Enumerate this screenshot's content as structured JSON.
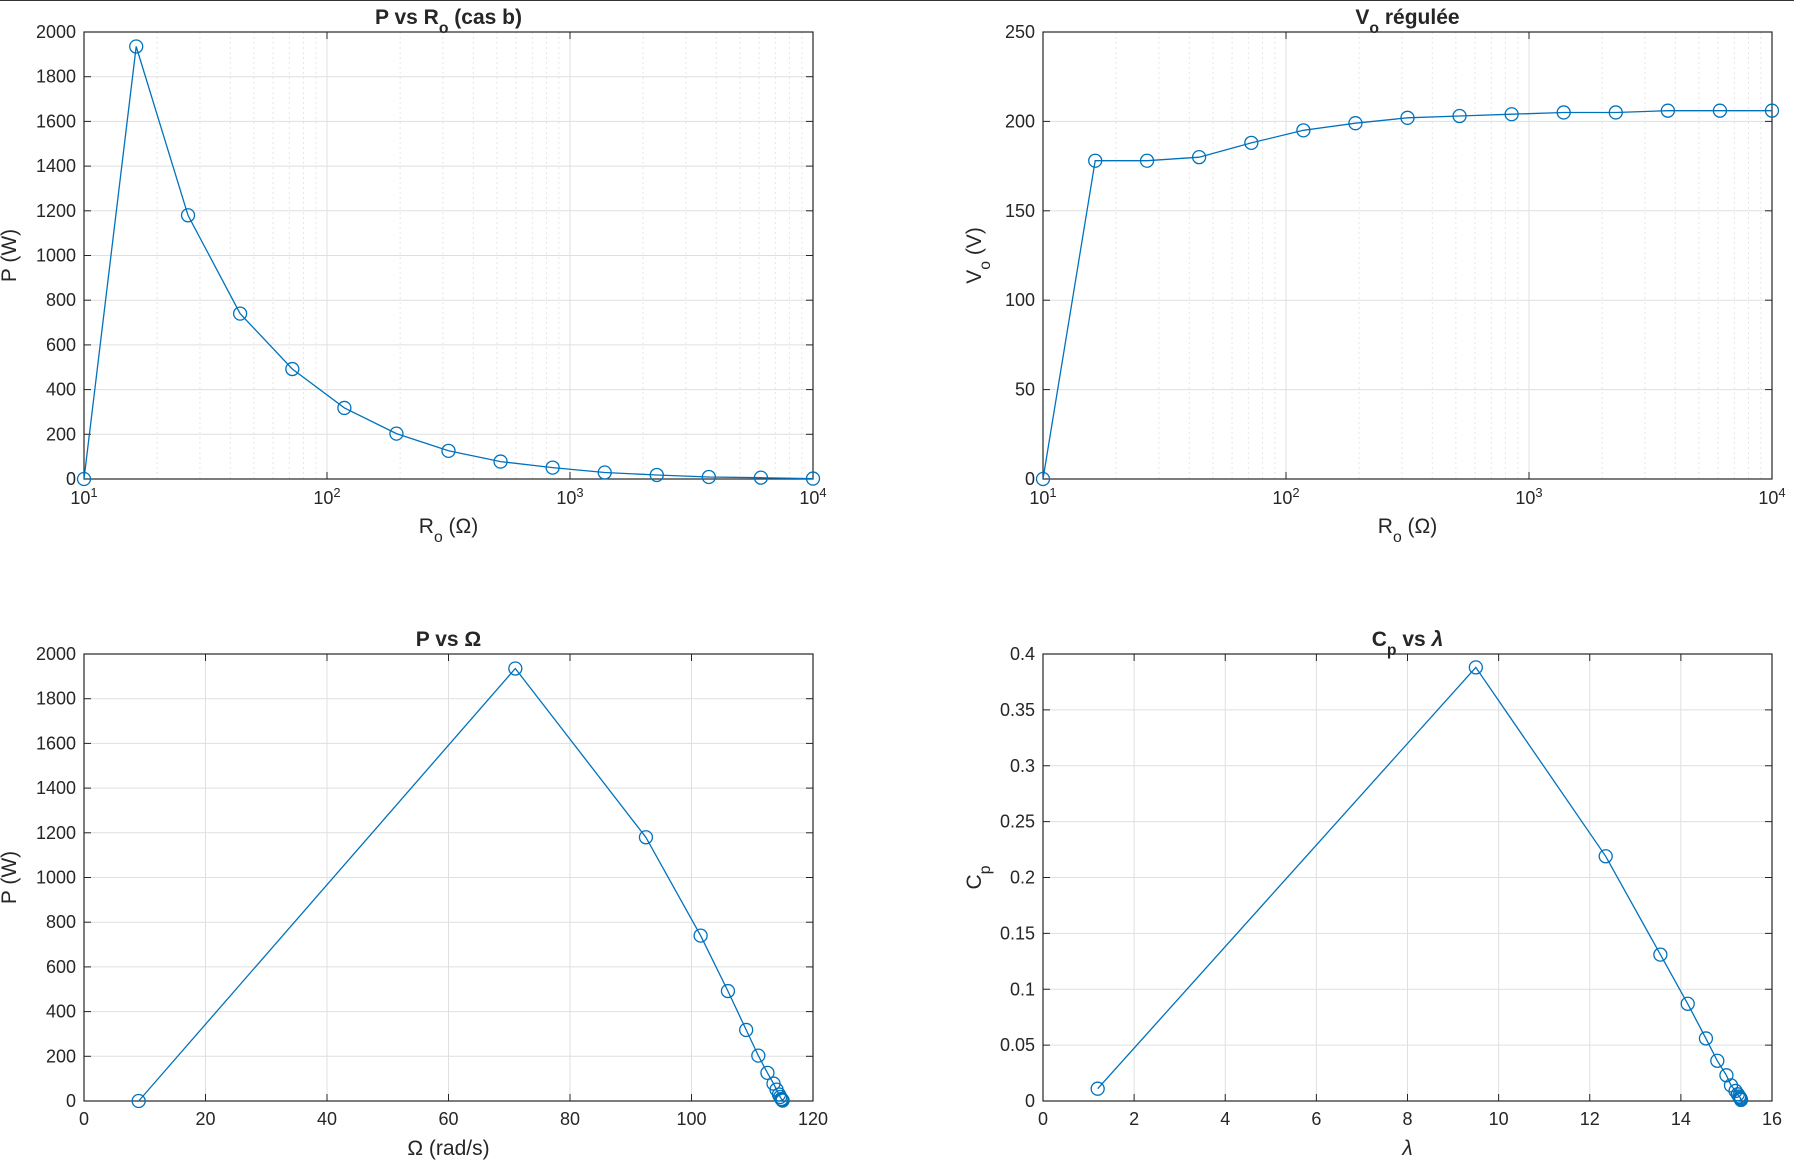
{
  "figure": {
    "colors": {
      "series": "#0072bd",
      "grid": "#dfdfdf",
      "axis": "#262626",
      "background": "#ffffff"
    }
  },
  "chart_data": [
    {
      "type": "line",
      "title_parts": [
        "P vs R",
        "o",
        " (cas b)"
      ],
      "xlabel_parts": [
        "R",
        "o",
        " (Ω)"
      ],
      "ylabel": "P (W)",
      "xscale": "log",
      "xlim": [
        10,
        10000
      ],
      "ylim": [
        0,
        2000
      ],
      "xticks": [
        10,
        100,
        1000,
        10000
      ],
      "xtick_labels": [
        [
          "10",
          "1"
        ],
        [
          "10",
          "2"
        ],
        [
          "10",
          "3"
        ],
        [
          "10",
          "4"
        ]
      ],
      "yticks": [
        0,
        200,
        400,
        600,
        800,
        1000,
        1200,
        1400,
        1600,
        1800,
        2000
      ],
      "ytick_labels": [
        "0",
        "200",
        "400",
        "600",
        "800",
        "1000",
        "1200",
        "1400",
        "1600",
        "1800",
        "2000"
      ],
      "grid": true,
      "minor_grid": true,
      "marker": "circle",
      "x": [
        10,
        16.4,
        26.8,
        43.9,
        72.0,
        117.9,
        193.1,
        316.2,
        517.9,
        848.3,
        1389.5,
        2275.8,
        3727.6,
        6105.4,
        10000
      ],
      "y": [
        0,
        1935,
        1180,
        740,
        492,
        318,
        203,
        126,
        78,
        51,
        29,
        18,
        9,
        6,
        2
      ]
    },
    {
      "type": "line",
      "title_parts": [
        "V",
        "o",
        " régulée"
      ],
      "xlabel_parts": [
        "R",
        "o",
        " (Ω)"
      ],
      "ylabel_parts": [
        "V",
        "o",
        " (V)"
      ],
      "xscale": "log",
      "xlim": [
        10,
        10000
      ],
      "ylim": [
        0,
        250
      ],
      "xticks": [
        10,
        100,
        1000,
        10000
      ],
      "xtick_labels": [
        [
          "10",
          "1"
        ],
        [
          "10",
          "2"
        ],
        [
          "10",
          "3"
        ],
        [
          "10",
          "4"
        ]
      ],
      "yticks": [
        0,
        50,
        100,
        150,
        200,
        250
      ],
      "ytick_labels": [
        "0",
        "50",
        "100",
        "150",
        "200",
        "250"
      ],
      "grid": true,
      "minor_grid": true,
      "marker": "circle",
      "x": [
        10,
        16.4,
        26.8,
        43.9,
        72.0,
        117.9,
        193.1,
        316.2,
        517.9,
        848.3,
        1389.5,
        2275.8,
        3727.6,
        6105.4,
        10000
      ],
      "y": [
        0,
        178,
        178,
        180,
        188,
        195,
        199,
        202,
        203,
        204,
        205,
        205,
        206,
        206,
        206
      ]
    },
    {
      "type": "line",
      "title": "P vs Ω",
      "xlabel": "Ω (rad/s)",
      "ylabel": "P (W)",
      "xscale": "linear",
      "xlim": [
        0,
        120
      ],
      "ylim": [
        0,
        2000
      ],
      "xticks": [
        0,
        20,
        40,
        60,
        80,
        100,
        120
      ],
      "xtick_labels": [
        "0",
        "20",
        "40",
        "60",
        "80",
        "100",
        "120"
      ],
      "yticks": [
        0,
        200,
        400,
        600,
        800,
        1000,
        1200,
        1400,
        1600,
        1800,
        2000
      ],
      "ytick_labels": [
        "0",
        "200",
        "400",
        "600",
        "800",
        "1000",
        "1200",
        "1400",
        "1600",
        "1800",
        "2000"
      ],
      "grid": true,
      "marker": "circle",
      "x": [
        9,
        71,
        92.5,
        101.5,
        106,
        109,
        111,
        112.5,
        113.5,
        114,
        114.4,
        114.6,
        114.8,
        114.9,
        115
      ],
      "y": [
        0,
        1935,
        1180,
        740,
        492,
        318,
        203,
        126,
        78,
        51,
        29,
        18,
        9,
        6,
        2
      ]
    },
    {
      "type": "line",
      "title_parts": [
        "C",
        "p",
        " vs ",
        "λ"
      ],
      "xlabel": "λ",
      "ylabel_parts": [
        "C",
        "p"
      ],
      "xscale": "linear",
      "xlim": [
        0,
        16
      ],
      "ylim": [
        0,
        0.4
      ],
      "xticks": [
        0,
        2,
        4,
        6,
        8,
        10,
        12,
        14,
        16
      ],
      "xtick_labels": [
        "0",
        "2",
        "4",
        "6",
        "8",
        "10",
        "12",
        "14",
        "16"
      ],
      "yticks": [
        0,
        0.05,
        0.1,
        0.15,
        0.2,
        0.25,
        0.3,
        0.35,
        0.4
      ],
      "ytick_labels": [
        "0",
        "0.05",
        "0.1",
        "0.15",
        "0.2",
        "0.25",
        "0.3",
        "0.35",
        "0.4"
      ],
      "grid": true,
      "marker": "circle",
      "x": [
        1.2,
        9.5,
        12.35,
        13.55,
        14.15,
        14.55,
        14.8,
        15.0,
        15.1,
        15.2,
        15.25,
        15.28,
        15.3,
        15.31,
        15.32
      ],
      "y": [
        0.011,
        0.388,
        0.219,
        0.131,
        0.087,
        0.056,
        0.036,
        0.023,
        0.014,
        0.009,
        0.006,
        0.004,
        0.003,
        0.002,
        0.001
      ]
    }
  ]
}
